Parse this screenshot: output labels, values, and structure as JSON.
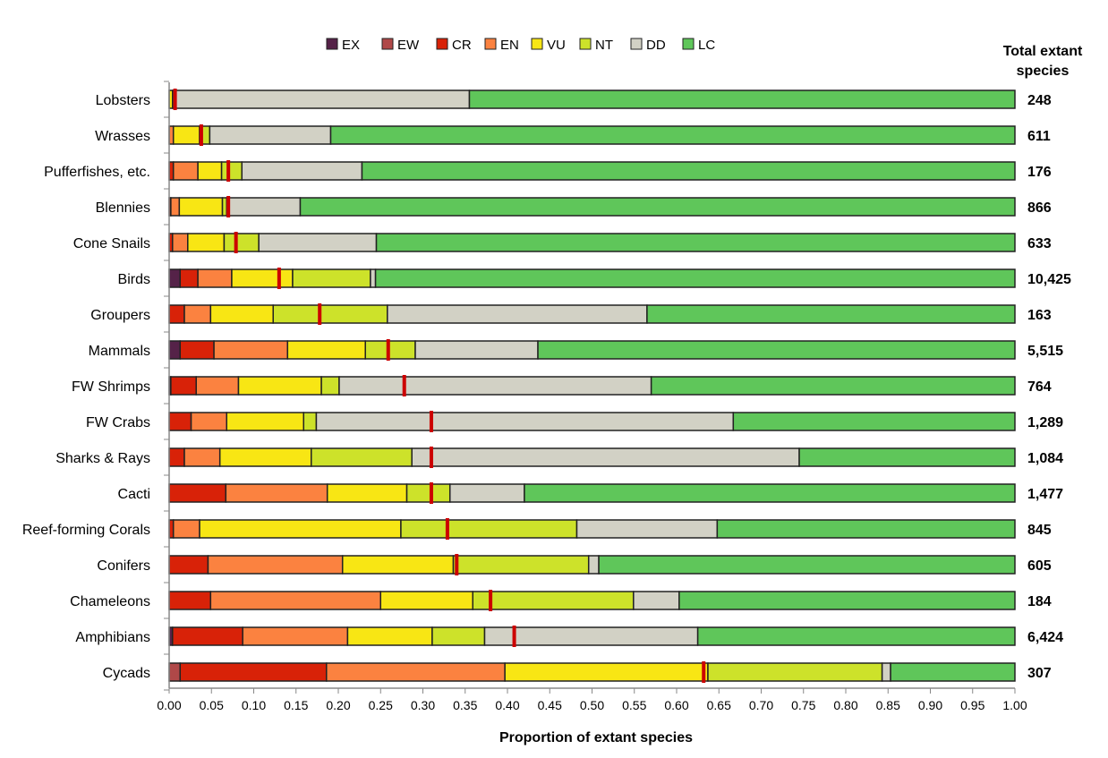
{
  "chart_data": {
    "type": "bar",
    "orientation": "horizontal-stacked",
    "xlabel": "Proportion of extant species",
    "xlim": [
      0,
      1
    ],
    "xticks": [
      "0.00",
      "0.05",
      "0.10",
      "0.15",
      "0.20",
      "0.25",
      "0.30",
      "0.35",
      "0.40",
      "0.45",
      "0.50",
      "0.55",
      "0.60",
      "0.65",
      "0.70",
      "0.75",
      "0.80",
      "0.85",
      "0.90",
      "0.95",
      "1.00"
    ],
    "legend_position": "top",
    "series_names": [
      "EX",
      "EW",
      "CR",
      "EN",
      "VU",
      "NT",
      "DD",
      "LC"
    ],
    "series_colors": [
      "#552248",
      "#b04848",
      "#d82208",
      "#fb8240",
      "#f8e614",
      "#cde22a",
      "#d2d1c5",
      "#5fc65a"
    ],
    "marker_color": "#cc0000",
    "totals_header": "Total extant species",
    "categories": [
      "Lobsters",
      "Wrasses",
      "Pufferfishes, etc.",
      "Blennies",
      "Cone Snails",
      "Birds",
      "Groupers",
      "Mammals",
      "FW Shrimps",
      "FW Crabs",
      "Sharks & Rays",
      "Cacti",
      "Reef-forming Corals",
      "Conifers",
      "Chameleons",
      "Amphibians",
      "Cycads"
    ],
    "totals": [
      "248",
      "611",
      "176",
      "866",
      "633",
      "10,425",
      "163",
      "5,515",
      "764",
      "1,289",
      "1,084",
      "1,477",
      "845",
      "605",
      "184",
      "6,424",
      "307"
    ],
    "cumulative": [
      [
        0,
        0,
        0,
        0,
        0.004,
        0.007,
        0.355,
        1
      ],
      [
        0,
        0,
        0,
        0.005,
        0.036,
        0.048,
        0.191,
        1
      ],
      [
        0,
        0,
        0.005,
        0.034,
        0.062,
        0.086,
        0.228,
        1
      ],
      [
        0,
        0,
        0.002,
        0.012,
        0.063,
        0.068,
        0.155,
        1
      ],
      [
        0,
        0,
        0.004,
        0.022,
        0.065,
        0.106,
        0.245,
        1
      ],
      [
        0.013,
        0.013,
        0.034,
        0.074,
        0.146,
        0.238,
        0.244,
        1
      ],
      [
        0,
        0,
        0.018,
        0.049,
        0.123,
        0.258,
        0.565,
        1
      ],
      [
        0.013,
        0.013,
        0.053,
        0.14,
        0.232,
        0.291,
        0.436,
        1
      ],
      [
        0.002,
        0.002,
        0.032,
        0.082,
        0.18,
        0.201,
        0.57,
        1
      ],
      [
        0,
        0,
        0.026,
        0.068,
        0.159,
        0.174,
        0.667,
        1
      ],
      [
        0,
        0,
        0.018,
        0.06,
        0.168,
        0.287,
        0.745,
        1
      ],
      [
        0,
        0,
        0.067,
        0.187,
        0.281,
        0.332,
        0.42,
        1
      ],
      [
        0,
        0,
        0.005,
        0.036,
        0.274,
        0.482,
        0.648,
        1
      ],
      [
        0,
        0,
        0.046,
        0.205,
        0.336,
        0.496,
        0.508,
        1
      ],
      [
        0,
        0,
        0.049,
        0.25,
        0.359,
        0.549,
        0.603,
        1
      ],
      [
        0.004,
        0.004,
        0.087,
        0.211,
        0.311,
        0.373,
        0.625,
        1
      ],
      [
        0,
        0.013,
        0.186,
        0.397,
        0.637,
        0.843,
        0.853,
        1
      ]
    ],
    "best_estimate_markers": [
      0.007,
      0.038,
      0.07,
      0.07,
      0.079,
      0.13,
      0.178,
      0.259,
      0.278,
      0.31,
      0.31,
      0.31,
      0.329,
      0.34,
      0.38,
      0.408,
      0.632
    ]
  }
}
